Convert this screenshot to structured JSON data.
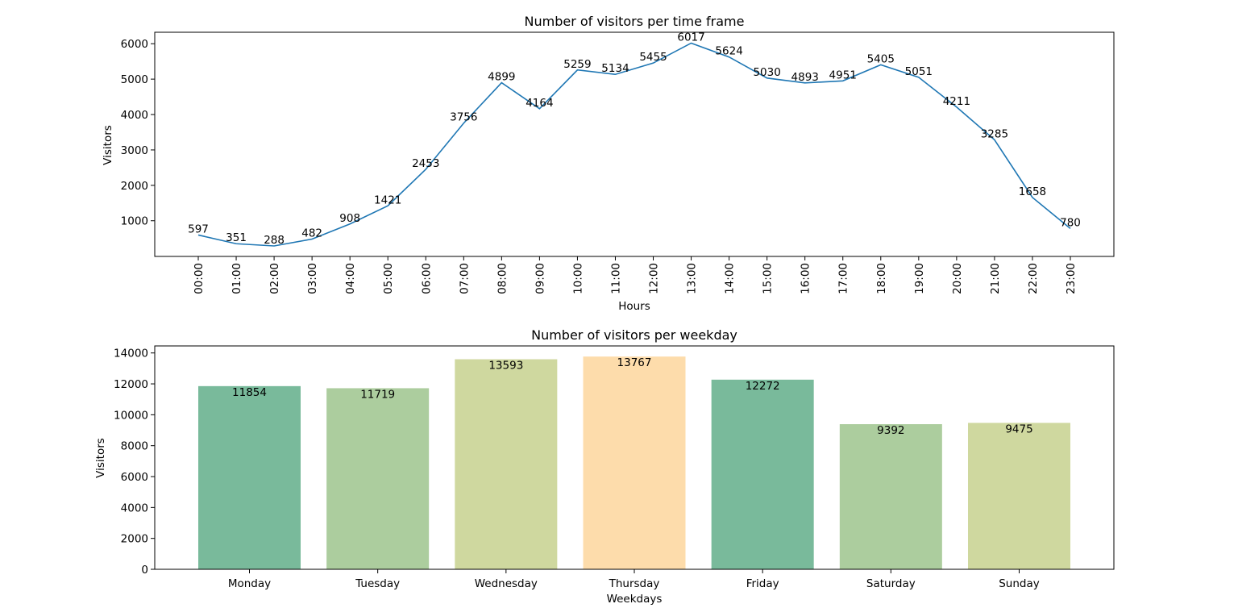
{
  "chart_data": [
    {
      "type": "line",
      "title": "Number of visitors per time frame",
      "xlabel": "Hours",
      "ylabel": "Visitors",
      "categories": [
        "00:00",
        "01:00",
        "02:00",
        "03:00",
        "04:00",
        "05:00",
        "06:00",
        "07:00",
        "08:00",
        "09:00",
        "10:00",
        "11:00",
        "12:00",
        "13:00",
        "14:00",
        "15:00",
        "16:00",
        "17:00",
        "18:00",
        "19:00",
        "20:00",
        "21:00",
        "22:00",
        "23:00"
      ],
      "values": [
        597,
        351,
        288,
        482,
        908,
        1421,
        2453,
        3756,
        4899,
        4164,
        5259,
        5134,
        5455,
        6017,
        5624,
        5030,
        4893,
        4951,
        5405,
        5051,
        4211,
        3285,
        1658,
        780
      ],
      "yticks": [
        1000,
        2000,
        3000,
        4000,
        5000,
        6000
      ],
      "ylim": [
        -8,
        6324
      ],
      "line_color": "#1f77b4",
      "grid": false
    },
    {
      "type": "bar",
      "title": "Number of visitors per weekday",
      "xlabel": "Weekdays",
      "ylabel": "Visitors",
      "categories": [
        "Monday",
        "Tuesday",
        "Wednesday",
        "Thursday",
        "Friday",
        "Saturday",
        "Sunday"
      ],
      "values": [
        11854,
        11719,
        13593,
        13767,
        12272,
        9392,
        9475
      ],
      "colors": [
        "#79ba9b",
        "#accd9e",
        "#cfd89f",
        "#fddcab",
        "#79ba9b",
        "#accd9e",
        "#cfd89f"
      ],
      "yticks": [
        0,
        2000,
        4000,
        6000,
        8000,
        10000,
        12000,
        14000
      ],
      "ylim": [
        0,
        14455
      ],
      "grid": false
    }
  ]
}
